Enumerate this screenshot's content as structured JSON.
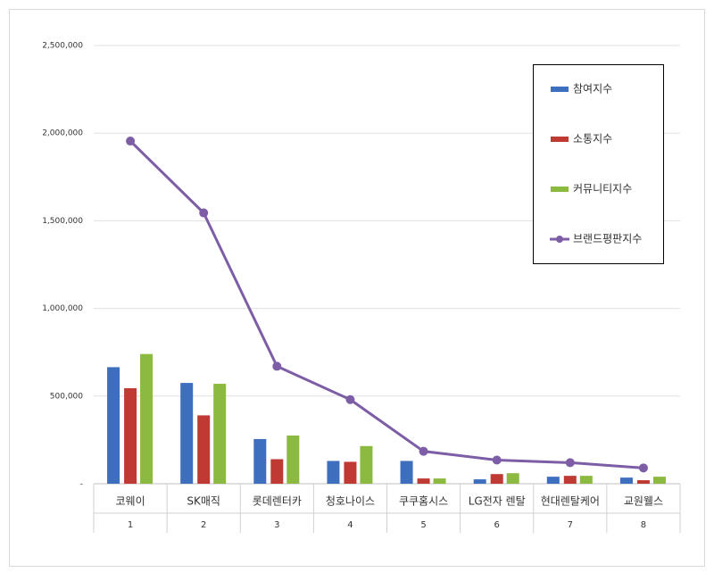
{
  "chart_data": {
    "type": "bar",
    "categories": [
      "코웨이",
      "SK매직",
      "롯데렌터카",
      "청호나이스",
      "쿠쿠홈시스",
      "LG전자 렌탈",
      "현대렌탈케어",
      "교원웰스"
    ],
    "category_numbers": [
      1,
      2,
      3,
      4,
      5,
      6,
      7,
      8
    ],
    "series": [
      {
        "name": "참여지수",
        "color": "#3d6fbe",
        "values": [
          665000,
          575000,
          255000,
          130000,
          130000,
          25000,
          40000,
          35000
        ]
      },
      {
        "name": "소통지수",
        "color": "#bf3a33",
        "values": [
          545000,
          390000,
          140000,
          125000,
          30000,
          55000,
          45000,
          20000
        ]
      },
      {
        "name": "커뮤니티지수",
        "color": "#8cb93f",
        "values": [
          740000,
          570000,
          275000,
          215000,
          30000,
          60000,
          45000,
          40000
        ]
      },
      {
        "name": "브랜드평판지수",
        "color": "#7d5ea6",
        "type": "line",
        "values": [
          1955000,
          1545000,
          670000,
          480000,
          185000,
          135000,
          120000,
          90000
        ]
      }
    ],
    "ylim": [
      0,
      2500000
    ],
    "yticks": [
      {
        "value": 0,
        "label": "-"
      },
      {
        "value": 500000,
        "label": "500,000"
      },
      {
        "value": 1000000,
        "label": "1,000,000"
      },
      {
        "value": 1500000,
        "label": "1,500,000"
      },
      {
        "value": 2000000,
        "label": "2,000,000"
      },
      {
        "value": 2500000,
        "label": "2,500,000"
      }
    ],
    "grid": true,
    "legend": "top-right"
  }
}
